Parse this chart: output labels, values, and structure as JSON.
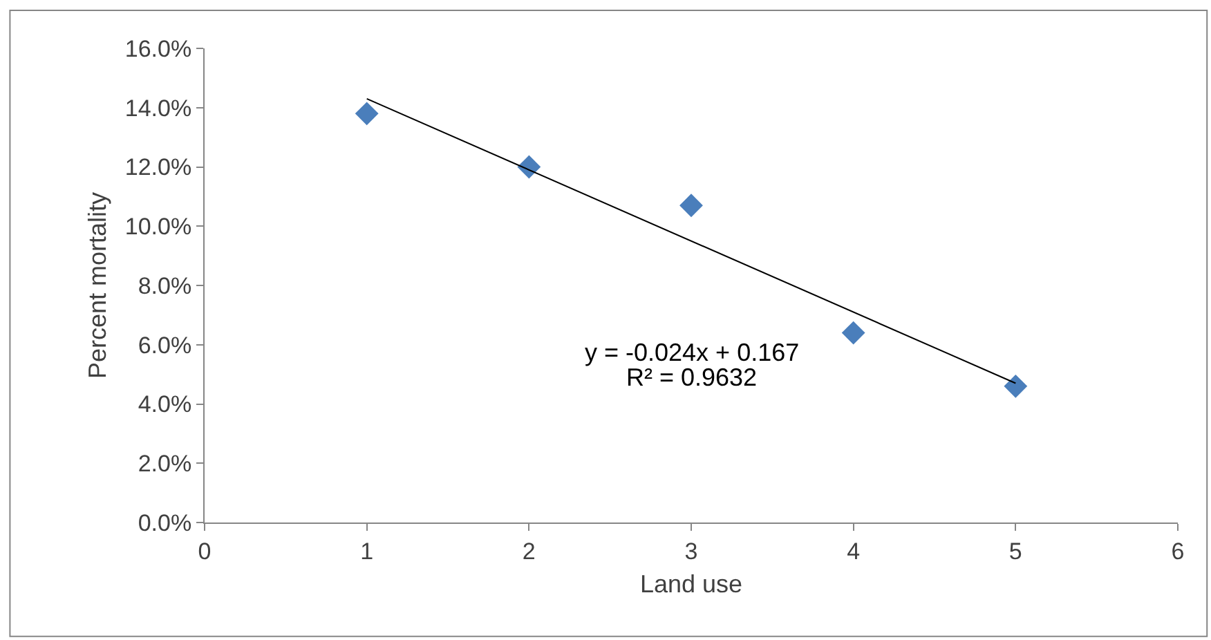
{
  "chart_data": {
    "type": "scatter",
    "xlabel": "Land use",
    "ylabel": "Percent mortality",
    "series": [
      {
        "color": "#4a7ebb",
        "marker": "diamond",
        "x": [
          1,
          2,
          3,
          4,
          5
        ],
        "values": [
          0.138,
          0.12,
          0.107,
          0.064,
          0.046
        ]
      },
      {
        "type": "line",
        "color": "#000000",
        "marker": "none",
        "x": [
          1,
          5
        ],
        "values": [
          0.143,
          0.047
        ]
      }
    ],
    "xlim": [
      0,
      6
    ],
    "xticks": [
      0,
      1,
      2,
      3,
      4,
      5,
      6
    ],
    "ylim": [
      0,
      0.16
    ],
    "yticks": [
      {
        "value": 0,
        "label": "0.0%"
      },
      {
        "value": 0.02,
        "label": "2.0%"
      },
      {
        "value": 0.04,
        "label": "4.0%"
      },
      {
        "value": 0.06,
        "label": "6.0%"
      },
      {
        "value": 0.08,
        "label": "8.0%"
      },
      {
        "value": 0.1,
        "label": "10.0%"
      },
      {
        "value": 0.12,
        "label": "12.0%"
      },
      {
        "value": 0.14,
        "label": "14.0%"
      },
      {
        "value": 0.16,
        "label": "16.0%"
      }
    ],
    "annotations": [
      "y = -0.024x + 0.167",
      "R² = 0.9632"
    ],
    "grid": false
  }
}
